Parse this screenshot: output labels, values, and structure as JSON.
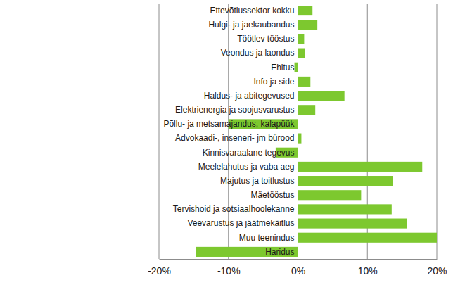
{
  "chart_data": {
    "type": "bar",
    "orientation": "horizontal",
    "grid": true,
    "color": "#7dc82f",
    "categories": [
      "Ettevõtlussektor kokku",
      "Hulgi- ja jaekaubandus",
      "Töötlev tööstus",
      "Veondus ja laondus",
      "Ehitus",
      "Info ja side",
      "Haldus- ja abitegevused",
      "Elektrienergia ja soojusvarustus",
      "Põllu- ja metsamajandus, kalapüük",
      "Advokaadi-, inseneri- jm bürood",
      "Kinnisvaraalane tegevus",
      "Meelelahutus ja vaba aeg",
      "Majutus ja toitlustus",
      "Mäetööstus",
      "Tervishoid ja sotsiaalhoolekanne",
      "Veevarustus ja jäätmekäitlus",
      "Muu teenindus",
      "Haridus"
    ],
    "values": [
      2.1,
      2.8,
      0.9,
      1.0,
      -0.5,
      1.8,
      6.7,
      2.5,
      -10.0,
      0.5,
      -3.2,
      17.9,
      13.7,
      9.1,
      13.5,
      15.7,
      20.0,
      -14.7
    ],
    "xlim": [
      -20,
      20
    ],
    "xticks": [
      {
        "value": -20,
        "label": "-20%"
      },
      {
        "value": -10,
        "label": "-10%"
      },
      {
        "value": 0,
        "label": "0%"
      },
      {
        "value": 10,
        "label": "10%"
      },
      {
        "value": 20,
        "label": "20%"
      }
    ]
  }
}
